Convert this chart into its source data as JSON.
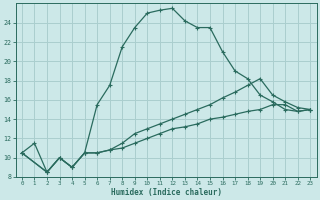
{
  "bg_color": "#cce8e8",
  "grid_color": "#aacece",
  "line_color": "#2a6b5e",
  "xlabel": "Humidex (Indice chaleur)",
  "xlim": [
    -0.5,
    23.5
  ],
  "ylim": [
    8,
    26
  ],
  "xticks": [
    0,
    1,
    2,
    3,
    4,
    5,
    6,
    7,
    8,
    9,
    10,
    11,
    12,
    13,
    14,
    15,
    16,
    17,
    18,
    19,
    20,
    21,
    22,
    23
  ],
  "yticks": [
    8,
    10,
    12,
    14,
    16,
    18,
    20,
    22,
    24
  ],
  "line1_x": [
    0,
    1,
    2,
    3,
    4,
    5,
    6,
    7,
    8,
    9,
    10,
    11,
    12,
    13,
    14,
    15,
    16,
    17,
    18,
    19,
    20,
    21,
    22,
    23
  ],
  "line1_y": [
    10.5,
    11.5,
    8.5,
    10.0,
    9.0,
    10.5,
    15.5,
    17.5,
    21.5,
    23.5,
    25.0,
    25.3,
    25.5,
    24.2,
    23.5,
    23.5,
    21.0,
    19.0,
    18.2,
    16.5,
    15.8,
    15.0,
    14.8,
    15.0
  ],
  "line2_x": [
    0,
    2,
    3,
    4,
    5,
    6,
    7,
    8,
    9,
    10,
    11,
    12,
    13,
    14,
    15,
    16,
    17,
    18,
    19,
    20,
    21,
    22,
    23
  ],
  "line2_y": [
    10.5,
    8.5,
    10.0,
    9.0,
    10.5,
    10.5,
    10.8,
    11.0,
    11.5,
    12.0,
    12.5,
    13.0,
    13.2,
    13.5,
    14.0,
    14.2,
    14.5,
    14.8,
    15.0,
    15.5,
    15.5,
    14.8,
    15.0
  ],
  "line3_x": [
    0,
    2,
    3,
    4,
    5,
    6,
    7,
    8,
    9,
    10,
    11,
    12,
    13,
    14,
    15,
    16,
    17,
    18,
    19,
    20,
    21,
    22,
    23
  ],
  "line3_y": [
    10.5,
    8.5,
    10.0,
    9.0,
    10.5,
    10.5,
    10.8,
    11.5,
    12.5,
    13.0,
    13.5,
    14.0,
    14.5,
    15.0,
    15.5,
    16.2,
    16.8,
    17.5,
    18.2,
    16.5,
    15.8,
    15.2,
    15.0
  ]
}
